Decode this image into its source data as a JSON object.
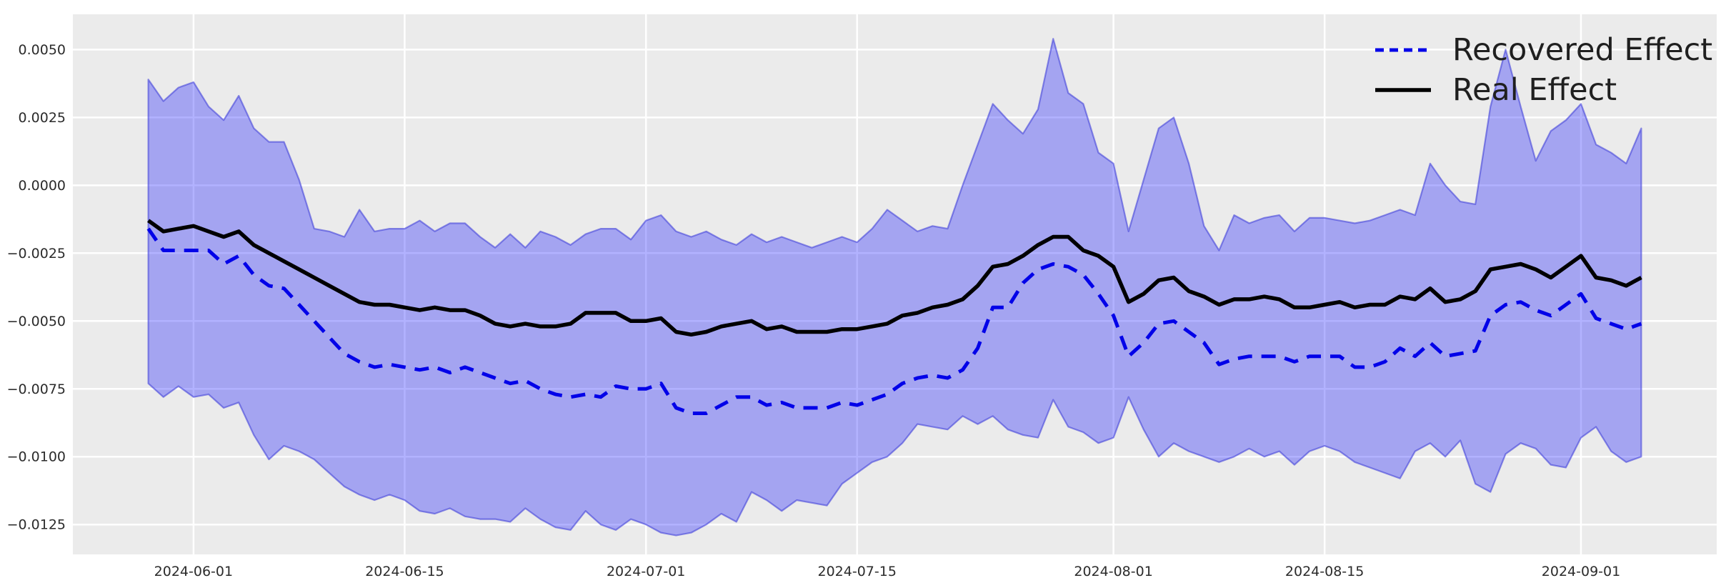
{
  "chart_data": {
    "type": "line",
    "title": "",
    "xlabel": "",
    "ylabel": "",
    "grid": true,
    "panel_bg": "#ebebeb",
    "grid_color": "#ffffff",
    "tick_color": "#2b2b2b",
    "legend_position": "upper right",
    "legend_labels": {
      "recovered": "Recovered Effect",
      "real": "Real Effect"
    },
    "ylim": [
      -0.0136,
      0.0063
    ],
    "x_pad_days": 5,
    "y_ticks": [
      {
        "value": 0.005,
        "label": "0.0050"
      },
      {
        "value": 0.0025,
        "label": "0.0025"
      },
      {
        "value": 0.0,
        "label": "0.0000"
      },
      {
        "value": -0.0025,
        "label": "−0.0025"
      },
      {
        "value": -0.005,
        "label": "−0.0050"
      },
      {
        "value": -0.0075,
        "label": "−0.0075"
      },
      {
        "value": -0.01,
        "label": "−0.0100"
      },
      {
        "value": -0.0125,
        "label": "−0.0125"
      }
    ],
    "x_ticks": [
      {
        "index": 3,
        "label": "2024-06-01"
      },
      {
        "index": 17,
        "label": "2024-06-15"
      },
      {
        "index": 33,
        "label": "2024-07-01"
      },
      {
        "index": 47,
        "label": "2024-07-15"
      },
      {
        "index": 64,
        "label": "2024-08-01"
      },
      {
        "index": 78,
        "label": "2024-08-15"
      },
      {
        "index": 95,
        "label": "2024-09-01"
      }
    ],
    "dates": [
      "2024-05-29",
      "2024-05-30",
      "2024-05-31",
      "2024-06-01",
      "2024-06-02",
      "2024-06-03",
      "2024-06-04",
      "2024-06-05",
      "2024-06-06",
      "2024-06-07",
      "2024-06-08",
      "2024-06-09",
      "2024-06-10",
      "2024-06-11",
      "2024-06-12",
      "2024-06-13",
      "2024-06-14",
      "2024-06-15",
      "2024-06-16",
      "2024-06-17",
      "2024-06-18",
      "2024-06-19",
      "2024-06-20",
      "2024-06-21",
      "2024-06-22",
      "2024-06-23",
      "2024-06-24",
      "2024-06-25",
      "2024-06-26",
      "2024-06-27",
      "2024-06-28",
      "2024-06-29",
      "2024-06-30",
      "2024-07-01",
      "2024-07-02",
      "2024-07-03",
      "2024-07-04",
      "2024-07-05",
      "2024-07-06",
      "2024-07-07",
      "2024-07-08",
      "2024-07-09",
      "2024-07-10",
      "2024-07-11",
      "2024-07-12",
      "2024-07-13",
      "2024-07-14",
      "2024-07-15",
      "2024-07-16",
      "2024-07-17",
      "2024-07-18",
      "2024-07-19",
      "2024-07-20",
      "2024-07-21",
      "2024-07-22",
      "2024-07-23",
      "2024-07-24",
      "2024-07-25",
      "2024-07-26",
      "2024-07-27",
      "2024-07-28",
      "2024-07-29",
      "2024-07-30",
      "2024-07-31",
      "2024-08-01",
      "2024-08-02",
      "2024-08-03",
      "2024-08-04",
      "2024-08-05",
      "2024-08-06",
      "2024-08-07",
      "2024-08-08",
      "2024-08-09",
      "2024-08-10",
      "2024-08-11",
      "2024-08-12",
      "2024-08-13",
      "2024-08-14",
      "2024-08-15",
      "2024-08-16",
      "2024-08-17",
      "2024-08-18",
      "2024-08-19",
      "2024-08-20",
      "2024-08-21",
      "2024-08-22",
      "2024-08-23",
      "2024-08-24",
      "2024-08-25",
      "2024-08-26",
      "2024-08-27",
      "2024-08-28",
      "2024-08-29",
      "2024-08-30",
      "2024-08-31",
      "2024-09-01",
      "2024-09-02",
      "2024-09-03",
      "2024-09-04",
      "2024-09-05"
    ],
    "series": [
      {
        "name": "Recovered Effect",
        "color": "#0202e8",
        "line_style": "dashed",
        "line_width": 5,
        "values": [
          -0.0016,
          -0.0024,
          -0.0024,
          -0.0024,
          -0.0024,
          -0.0029,
          -0.0026,
          -0.0033,
          -0.0037,
          -0.0038,
          -0.0044,
          -0.005,
          -0.0056,
          -0.0062,
          -0.0065,
          -0.0067,
          -0.0066,
          -0.0067,
          -0.0068,
          -0.0067,
          -0.0069,
          -0.0067,
          -0.0069,
          -0.0071,
          -0.0073,
          -0.0072,
          -0.0075,
          -0.0077,
          -0.0078,
          -0.0077,
          -0.0078,
          -0.0074,
          -0.0075,
          -0.0075,
          -0.0073,
          -0.0082,
          -0.0084,
          -0.0084,
          -0.0081,
          -0.0078,
          -0.0078,
          -0.0081,
          -0.008,
          -0.0082,
          -0.0082,
          -0.0082,
          -0.008,
          -0.0081,
          -0.0079,
          -0.0077,
          -0.0073,
          -0.0071,
          -0.007,
          -0.0071,
          -0.0068,
          -0.006,
          -0.0045,
          -0.0045,
          -0.0036,
          -0.0031,
          -0.0029,
          -0.003,
          -0.0033,
          -0.004,
          -0.0048,
          -0.0063,
          -0.0058,
          -0.0051,
          -0.005,
          -0.0054,
          -0.0058,
          -0.0066,
          -0.0064,
          -0.0063,
          -0.0063,
          -0.0063,
          -0.0065,
          -0.0063,
          -0.0063,
          -0.0063,
          -0.0067,
          -0.0067,
          -0.0065,
          -0.006,
          -0.0063,
          -0.0058,
          -0.0063,
          -0.0062,
          -0.0061,
          -0.0048,
          -0.0044,
          -0.0043,
          -0.0046,
          -0.0048,
          -0.0044,
          -0.004,
          -0.0049,
          -0.0051,
          -0.0053,
          -0.0051
        ]
      },
      {
        "name": "Real Effect",
        "color": "#000000",
        "line_style": "solid",
        "line_width": 5.5,
        "values": [
          -0.0013,
          -0.0017,
          -0.0016,
          -0.0015,
          -0.0017,
          -0.0019,
          -0.0017,
          -0.0022,
          -0.0025,
          -0.0028,
          -0.0031,
          -0.0034,
          -0.0037,
          -0.004,
          -0.0043,
          -0.0044,
          -0.0044,
          -0.0045,
          -0.0046,
          -0.0045,
          -0.0046,
          -0.0046,
          -0.0048,
          -0.0051,
          -0.0052,
          -0.0051,
          -0.0052,
          -0.0052,
          -0.0051,
          -0.0047,
          -0.0047,
          -0.0047,
          -0.005,
          -0.005,
          -0.0049,
          -0.0054,
          -0.0055,
          -0.0054,
          -0.0052,
          -0.0051,
          -0.005,
          -0.0053,
          -0.0052,
          -0.0054,
          -0.0054,
          -0.0054,
          -0.0053,
          -0.0053,
          -0.0052,
          -0.0051,
          -0.0048,
          -0.0047,
          -0.0045,
          -0.0044,
          -0.0042,
          -0.0037,
          -0.003,
          -0.0029,
          -0.0026,
          -0.0022,
          -0.0019,
          -0.0019,
          -0.0024,
          -0.0026,
          -0.003,
          -0.0043,
          -0.004,
          -0.0035,
          -0.0034,
          -0.0039,
          -0.0041,
          -0.0044,
          -0.0042,
          -0.0042,
          -0.0041,
          -0.0042,
          -0.0045,
          -0.0045,
          -0.0044,
          -0.0043,
          -0.0045,
          -0.0044,
          -0.0044,
          -0.0041,
          -0.0042,
          -0.0038,
          -0.0043,
          -0.0042,
          -0.0039,
          -0.0031,
          -0.003,
          -0.0029,
          -0.0031,
          -0.0034,
          -0.003,
          -0.0026,
          -0.0034,
          -0.0035,
          -0.0037,
          -0.0034
        ]
      }
    ],
    "band": {
      "name": "confidence-band",
      "fill_rgba": "rgba(0,0,255,0.30)",
      "edge_rgba": "rgba(55,55,215,0.55)",
      "upper": [
        0.0039,
        0.0031,
        0.0036,
        0.0038,
        0.0029,
        0.0024,
        0.0033,
        0.0021,
        0.0016,
        0.0016,
        0.0002,
        -0.0016,
        -0.0017,
        -0.0019,
        -0.0009,
        -0.0017,
        -0.0016,
        -0.0016,
        -0.0013,
        -0.0017,
        -0.0014,
        -0.0014,
        -0.0019,
        -0.0023,
        -0.0018,
        -0.0023,
        -0.0017,
        -0.0019,
        -0.0022,
        -0.0018,
        -0.0016,
        -0.0016,
        -0.002,
        -0.0013,
        -0.0011,
        -0.0017,
        -0.0019,
        -0.0017,
        -0.002,
        -0.0022,
        -0.0018,
        -0.0021,
        -0.0019,
        -0.0021,
        -0.0023,
        -0.0021,
        -0.0019,
        -0.0021,
        -0.0016,
        -0.0009,
        -0.0013,
        -0.0017,
        -0.0015,
        -0.0016,
        0.0,
        0.0015,
        0.003,
        0.0024,
        0.0019,
        0.0028,
        0.0054,
        0.0034,
        0.003,
        0.0012,
        0.0008,
        -0.0017,
        0.0002,
        0.0021,
        0.0025,
        0.0008,
        -0.0015,
        -0.0024,
        -0.0011,
        -0.0014,
        -0.0012,
        -0.0011,
        -0.0017,
        -0.0012,
        -0.0012,
        -0.0013,
        -0.0014,
        -0.0013,
        -0.0011,
        -0.0009,
        -0.0011,
        0.0008,
        0.0,
        -0.0006,
        -0.0007,
        0.0029,
        0.005,
        0.0029,
        0.0009,
        0.002,
        0.0024,
        0.003,
        0.0015,
        0.0012,
        0.0008,
        0.0021
      ],
      "lower": [
        -0.0073,
        -0.0078,
        -0.0074,
        -0.0078,
        -0.0077,
        -0.0082,
        -0.008,
        -0.0092,
        -0.0101,
        -0.0096,
        -0.0098,
        -0.0101,
        -0.0106,
        -0.0111,
        -0.0114,
        -0.0116,
        -0.0114,
        -0.0116,
        -0.012,
        -0.0121,
        -0.0119,
        -0.0122,
        -0.0123,
        -0.0123,
        -0.0124,
        -0.0119,
        -0.0123,
        -0.0126,
        -0.0127,
        -0.012,
        -0.0125,
        -0.0127,
        -0.0123,
        -0.0125,
        -0.0128,
        -0.0129,
        -0.0128,
        -0.0125,
        -0.0121,
        -0.0124,
        -0.0113,
        -0.0116,
        -0.012,
        -0.0116,
        -0.0117,
        -0.0118,
        -0.011,
        -0.0106,
        -0.0102,
        -0.01,
        -0.0095,
        -0.0088,
        -0.0089,
        -0.009,
        -0.0085,
        -0.0088,
        -0.0085,
        -0.009,
        -0.0092,
        -0.0093,
        -0.0079,
        -0.0089,
        -0.0091,
        -0.0095,
        -0.0093,
        -0.0078,
        -0.009,
        -0.01,
        -0.0095,
        -0.0098,
        -0.01,
        -0.0102,
        -0.01,
        -0.0097,
        -0.01,
        -0.0098,
        -0.0103,
        -0.0098,
        -0.0096,
        -0.0098,
        -0.0102,
        -0.0104,
        -0.0106,
        -0.0108,
        -0.0098,
        -0.0095,
        -0.01,
        -0.0094,
        -0.011,
        -0.0113,
        -0.0099,
        -0.0095,
        -0.0097,
        -0.0103,
        -0.0104,
        -0.0093,
        -0.0089,
        -0.0098,
        -0.0102,
        -0.01
      ]
    }
  }
}
